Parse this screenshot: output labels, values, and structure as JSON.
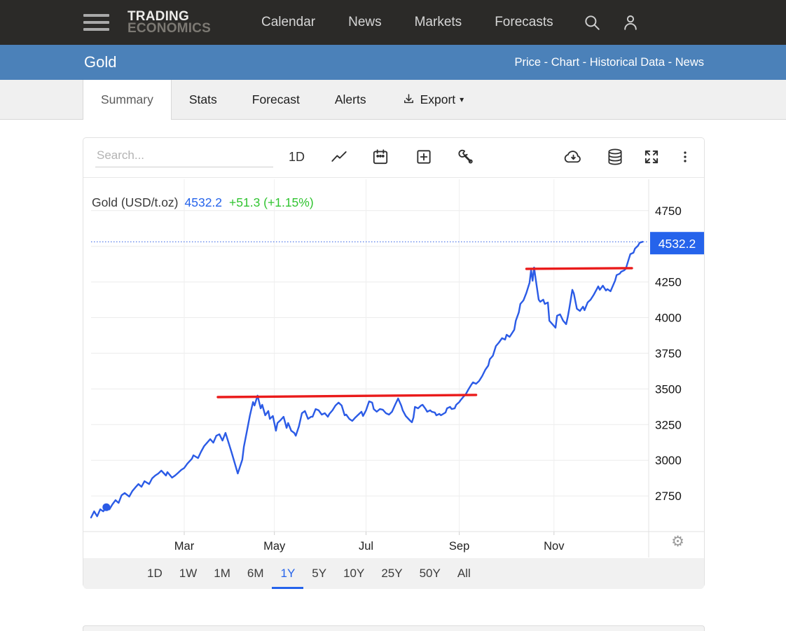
{
  "navbar": {
    "logo_line1": "TRADING",
    "logo_line2": "ECONOMICS",
    "links": [
      "Calendar",
      "News",
      "Markets",
      "Forecasts"
    ]
  },
  "title_bar": {
    "title": "Gold",
    "links": [
      "Price",
      "Chart",
      "Historical Data",
      "News"
    ],
    "separator": " - "
  },
  "tabs": {
    "items": [
      "Summary",
      "Stats",
      "Forecast",
      "Alerts"
    ],
    "active": "Summary",
    "export_label": "Export",
    "export_caret": "▾"
  },
  "toolbar": {
    "search_placeholder": "Search...",
    "interval_label": "1D"
  },
  "legend": {
    "series_label": "Gold (USD/t.oz)",
    "price": "4532.2",
    "change": "+51.3 (+1.15%)"
  },
  "range_buttons": {
    "items": [
      "1D",
      "1W",
      "1M",
      "6M",
      "1Y",
      "5Y",
      "10Y",
      "25Y",
      "50Y",
      "All"
    ],
    "active": "1Y"
  },
  "icons": {
    "gear": "⚙"
  },
  "colors": {
    "navbar_bg": "#2b2a28",
    "title_bar_bg": "#4b81b9",
    "accent_blue": "#2563eb",
    "line_blue": "#2b5be6",
    "gain_green": "#31c431",
    "trendline_red": "#ea1b1b"
  },
  "chart_data": {
    "type": "line",
    "title": "Gold (USD/t.oz)",
    "x_unit": "day_of_year",
    "x_range": [
      0,
      365
    ],
    "y_range": [
      2500,
      4970
    ],
    "grid": true,
    "x_ticks": [
      {
        "label": "Mar",
        "x": 61
      },
      {
        "label": "May",
        "x": 120
      },
      {
        "label": "Jul",
        "x": 180
      },
      {
        "label": "Sep",
        "x": 241
      },
      {
        "label": "Nov",
        "x": 303
      }
    ],
    "y_tick_labels": [
      4750,
      4250,
      4000,
      3750,
      3500,
      3250,
      3000,
      2750
    ],
    "y_gridlines": [
      4750,
      4500,
      4250,
      4000,
      3750,
      3500,
      3250,
      3000,
      2750
    ],
    "last_price": 4532.2,
    "last_price_label": "4532.2",
    "last_price_badge_color": "#2563eb",
    "marker_point": [
      10,
      2671
    ],
    "trendlines": [
      {
        "x1": 83,
        "y1": 3443,
        "x2": 252,
        "y2": 3458,
        "color": "#ea1b1b"
      },
      {
        "x1": 285,
        "y1": 4342,
        "x2": 354,
        "y2": 4347,
        "color": "#ea1b1b"
      }
    ],
    "series": [
      {
        "name": "Gold (USD/t.oz)",
        "color": "#2b5be6",
        "points": [
          [
            0,
            2598
          ],
          [
            2,
            2642
          ],
          [
            4,
            2607
          ],
          [
            6,
            2656
          ],
          [
            8,
            2642
          ],
          [
            10,
            2671
          ],
          [
            12,
            2656
          ],
          [
            14,
            2691
          ],
          [
            16,
            2720
          ],
          [
            18,
            2701
          ],
          [
            20,
            2755
          ],
          [
            22,
            2770
          ],
          [
            25,
            2745
          ],
          [
            27,
            2784
          ],
          [
            29,
            2809
          ],
          [
            31,
            2833
          ],
          [
            33,
            2814
          ],
          [
            35,
            2853
          ],
          [
            38,
            2833
          ],
          [
            40,
            2873
          ],
          [
            42,
            2893
          ],
          [
            44,
            2907
          ],
          [
            46,
            2927
          ],
          [
            49,
            2893
          ],
          [
            50,
            2917
          ],
          [
            53,
            2878
          ],
          [
            55,
            2893
          ],
          [
            57,
            2912
          ],
          [
            59,
            2932
          ],
          [
            61,
            2946
          ],
          [
            63,
            2976
          ],
          [
            66,
            3010
          ],
          [
            67,
            3035
          ],
          [
            70,
            3015
          ],
          [
            72,
            3060
          ],
          [
            74,
            3099
          ],
          [
            76,
            3123
          ],
          [
            78,
            3148
          ],
          [
            80,
            3123
          ],
          [
            82,
            3172
          ],
          [
            84,
            3182
          ],
          [
            86,
            3138
          ],
          [
            88,
            3192
          ],
          [
            90,
            3123
          ],
          [
            92,
            3055
          ],
          [
            94,
            2981
          ],
          [
            96,
            2907
          ],
          [
            99,
            3005
          ],
          [
            100,
            3094
          ],
          [
            102,
            3202
          ],
          [
            104,
            3315
          ],
          [
            106,
            3408
          ],
          [
            107,
            3384
          ],
          [
            109,
            3453
          ],
          [
            111,
            3364
          ],
          [
            112,
            3389
          ],
          [
            114,
            3315
          ],
          [
            116,
            3345
          ],
          [
            117,
            3290
          ],
          [
            119,
            3310
          ],
          [
            121,
            3207
          ],
          [
            122,
            3261
          ],
          [
            124,
            3281
          ],
          [
            126,
            3305
          ],
          [
            128,
            3227
          ],
          [
            129,
            3261
          ],
          [
            131,
            3207
          ],
          [
            133,
            3192
          ],
          [
            134,
            3172
          ],
          [
            136,
            3236
          ],
          [
            138,
            3330
          ],
          [
            140,
            3345
          ],
          [
            142,
            3290
          ],
          [
            144,
            3305
          ],
          [
            145,
            3305
          ],
          [
            147,
            3359
          ],
          [
            149,
            3350
          ],
          [
            151,
            3320
          ],
          [
            153,
            3330
          ],
          [
            155,
            3305
          ],
          [
            156,
            3325
          ],
          [
            158,
            3350
          ],
          [
            160,
            3384
          ],
          [
            162,
            3404
          ],
          [
            164,
            3384
          ],
          [
            166,
            3315
          ],
          [
            167,
            3320
          ],
          [
            169,
            3290
          ],
          [
            171,
            3276
          ],
          [
            173,
            3300
          ],
          [
            175,
            3320
          ],
          [
            177,
            3340
          ],
          [
            178,
            3310
          ],
          [
            180,
            3350
          ],
          [
            182,
            3413
          ],
          [
            184,
            3404
          ],
          [
            185,
            3359
          ],
          [
            187,
            3340
          ],
          [
            189,
            3359
          ],
          [
            191,
            3354
          ],
          [
            193,
            3330
          ],
          [
            195,
            3320
          ],
          [
            197,
            3340
          ],
          [
            199,
            3389
          ],
          [
            201,
            3433
          ],
          [
            203,
            3384
          ],
          [
            204,
            3350
          ],
          [
            206,
            3310
          ],
          [
            209,
            3276
          ],
          [
            210,
            3266
          ],
          [
            211,
            3300
          ],
          [
            212,
            3374
          ],
          [
            214,
            3364
          ],
          [
            216,
            3384
          ],
          [
            217,
            3389
          ],
          [
            219,
            3359
          ],
          [
            220,
            3340
          ],
          [
            222,
            3350
          ],
          [
            223,
            3340
          ],
          [
            225,
            3335
          ],
          [
            226,
            3315
          ],
          [
            228,
            3325
          ],
          [
            229,
            3315
          ],
          [
            232,
            3335
          ],
          [
            233,
            3364
          ],
          [
            235,
            3374
          ],
          [
            236,
            3359
          ],
          [
            238,
            3364
          ],
          [
            239,
            3389
          ],
          [
            241,
            3408
          ],
          [
            242,
            3423
          ],
          [
            244,
            3448
          ],
          [
            245,
            3458
          ],
          [
            247,
            3497
          ],
          [
            249,
            3531
          ],
          [
            250,
            3546
          ],
          [
            252,
            3536
          ],
          [
            254,
            3556
          ],
          [
            256,
            3590
          ],
          [
            258,
            3634
          ],
          [
            260,
            3664
          ],
          [
            261,
            3708
          ],
          [
            263,
            3733
          ],
          [
            265,
            3801
          ],
          [
            267,
            3826
          ],
          [
            269,
            3856
          ],
          [
            271,
            3846
          ],
          [
            272,
            3880
          ],
          [
            274,
            3865
          ],
          [
            277,
            3915
          ],
          [
            278,
            3978
          ],
          [
            280,
            4037
          ],
          [
            281,
            4096
          ],
          [
            283,
            4121
          ],
          [
            285,
            4175
          ],
          [
            287,
            4244
          ],
          [
            288,
            4332
          ],
          [
            289,
            4259
          ],
          [
            290,
            4352
          ],
          [
            291,
            4273
          ],
          [
            293,
            4126
          ],
          [
            294,
            4111
          ],
          [
            296,
            4126
          ],
          [
            297,
            4096
          ],
          [
            299,
            4106
          ],
          [
            300,
            3978
          ],
          [
            302,
            3954
          ],
          [
            304,
            3929
          ],
          [
            305,
            4013
          ],
          [
            307,
            4023
          ],
          [
            309,
            3978
          ],
          [
            311,
            3954
          ],
          [
            312,
            4003
          ],
          [
            313,
            4062
          ],
          [
            315,
            4195
          ],
          [
            316,
            4170
          ],
          [
            318,
            4062
          ],
          [
            320,
            4047
          ],
          [
            321,
            4062
          ],
          [
            322,
            4077
          ],
          [
            323,
            4052
          ],
          [
            325,
            4106
          ],
          [
            327,
            4126
          ],
          [
            329,
            4160
          ],
          [
            332,
            4219
          ],
          [
            333,
            4195
          ],
          [
            335,
            4224
          ],
          [
            337,
            4190
          ],
          [
            338,
            4200
          ],
          [
            340,
            4185
          ],
          [
            343,
            4259
          ],
          [
            344,
            4298
          ],
          [
            346,
            4308
          ],
          [
            347,
            4322
          ],
          [
            349,
            4332
          ],
          [
            350,
            4342
          ],
          [
            352,
            4411
          ],
          [
            353,
            4445
          ],
          [
            355,
            4455
          ],
          [
            356,
            4484
          ],
          [
            358,
            4504
          ],
          [
            359,
            4524
          ],
          [
            361,
            4532.2
          ]
        ]
      }
    ]
  }
}
